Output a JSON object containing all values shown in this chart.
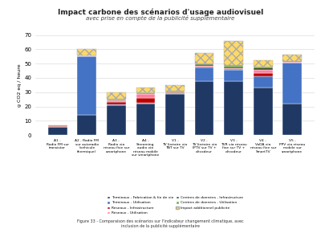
{
  "title": "Impact carbone des scénarios d'usage audiovisuel",
  "subtitle": "avec prise en compte de la publicité supplémentaire",
  "ylabel": "g CO2 eq / heure",
  "ylim": [
    0,
    70
  ],
  "yticks": [
    0,
    10,
    20,
    30,
    40,
    50,
    60,
    70
  ],
  "categories": [
    "A1 -\nRadio FM sur\ntransistor",
    "A2 - Radio FM\nsur autoradio\n(véhicule\nthermique)",
    "A3 -\nRadio via\nréseau fixe sur\nsmartphone",
    "A4 -\nStreaming\naudio via\nréseau mobile\nsur smartphone",
    "V1 -\nTV linéaire via\nTNT sur TV",
    "V2 -\nTV linéaire via\nIPTV sur TV +\ndécodeur",
    "V3 -\nTVR via réseau\nfixe sur TV +\ndécodeur",
    "V4 -\nVoDA via\nréseau fixe sur\nSmartTV",
    "V5 -\nPPV via réseau\nmobile sur\nsmartphone"
  ],
  "layers": [
    {
      "label": "Terminaux - Fabrication & fin de vie",
      "values": [
        5.5,
        14.0,
        21.0,
        22.0,
        29.0,
        38.0,
        38.0,
        33.0,
        22.0
      ],
      "color": "#1F3864",
      "hatch": null
    },
    {
      "label": "Terminaux - Utilisation",
      "values": [
        0.5,
        41.0,
        0.5,
        0.5,
        0.5,
        9.5,
        7.5,
        8.0,
        28.5
      ],
      "color": "#4472C4",
      "hatch": null
    },
    {
      "label": "Réseaux - Infrastructure",
      "values": [
        0.3,
        0.3,
        1.5,
        3.5,
        0.3,
        0.5,
        0.5,
        2.5,
        0.3
      ],
      "color": "#C00000",
      "hatch": null
    },
    {
      "label": "Réseaux - Utilisation",
      "values": [
        0.2,
        0.2,
        1.0,
        2.5,
        0.2,
        0.5,
        0.5,
        2.0,
        0.2
      ],
      "color": "#FF80A0",
      "hatch": null
    },
    {
      "label": "Centres de données - Infrastructure",
      "values": [
        0.2,
        0.2,
        0.8,
        1.0,
        0.5,
        1.0,
        1.5,
        1.5,
        0.5
      ],
      "color": "#375623",
      "hatch": null
    },
    {
      "label": "Centres de données - Utilisation",
      "values": [
        0.1,
        0.1,
        0.5,
        0.5,
        0.5,
        0.5,
        1.0,
        1.0,
        0.2
      ],
      "color": "#70AD47",
      "hatch": null
    },
    {
      "label": "Impact additionnel publicité",
      "values": [
        0.3,
        4.5,
        4.5,
        3.5,
        4.0,
        7.5,
        17.0,
        4.5,
        4.5
      ],
      "color": "#FFD966",
      "hatch": "xxx"
    }
  ],
  "caption": "Figure 33 - Comparaison des scénarios sur l'indicateur changement climatique, avec\ninclusion de la publicité supplémentaire",
  "background_color": "#FFFFFF",
  "grid_color": "#DDDDDD"
}
